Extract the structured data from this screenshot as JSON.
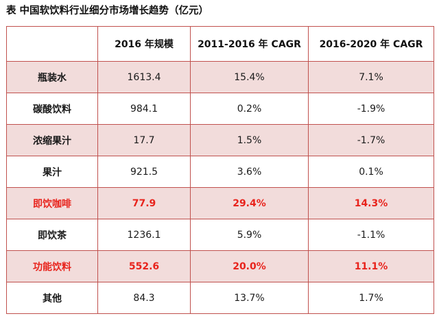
{
  "title": "表  中国软饮料行业细分市场增长趋势（亿元）",
  "colors": {
    "border": "#c0504d",
    "shade": "#f2dcdb",
    "highlight": "#e8231c"
  },
  "headers": [
    "",
    "2016 年规模",
    "2011-2016 年 CAGR",
    "2016-2020 年 CAGR"
  ],
  "rows": [
    {
      "label": "瓶装水",
      "size": "1613.4",
      "cagr_2011_2016": "15.4%",
      "cagr_2016_2020": "7.1%",
      "shaded": true,
      "highlighted": false
    },
    {
      "label": "碳酸饮料",
      "size": "984.1",
      "cagr_2011_2016": "0.2%",
      "cagr_2016_2020": "-1.9%",
      "shaded": false,
      "highlighted": false
    },
    {
      "label": "浓缩果汁",
      "size": "17.7",
      "cagr_2011_2016": "1.5%",
      "cagr_2016_2020": "-1.7%",
      "shaded": true,
      "highlighted": false
    },
    {
      "label": "果汁",
      "size": "921.5",
      "cagr_2011_2016": "3.6%",
      "cagr_2016_2020": "0.1%",
      "shaded": false,
      "highlighted": false
    },
    {
      "label": "即饮咖啡",
      "size": "77.9",
      "cagr_2011_2016": "29.4%",
      "cagr_2016_2020": "14.3%",
      "shaded": true,
      "highlighted": true
    },
    {
      "label": "即饮茶",
      "size": "1236.1",
      "cagr_2011_2016": "5.9%",
      "cagr_2016_2020": "-1.1%",
      "shaded": false,
      "highlighted": false
    },
    {
      "label": "功能饮料",
      "size": "552.6",
      "cagr_2011_2016": "20.0%",
      "cagr_2016_2020": "11.1%",
      "shaded": true,
      "highlighted": true
    },
    {
      "label": "其他",
      "size": "84.3",
      "cagr_2011_2016": "13.7%",
      "cagr_2016_2020": "1.7%",
      "shaded": false,
      "highlighted": false
    }
  ]
}
